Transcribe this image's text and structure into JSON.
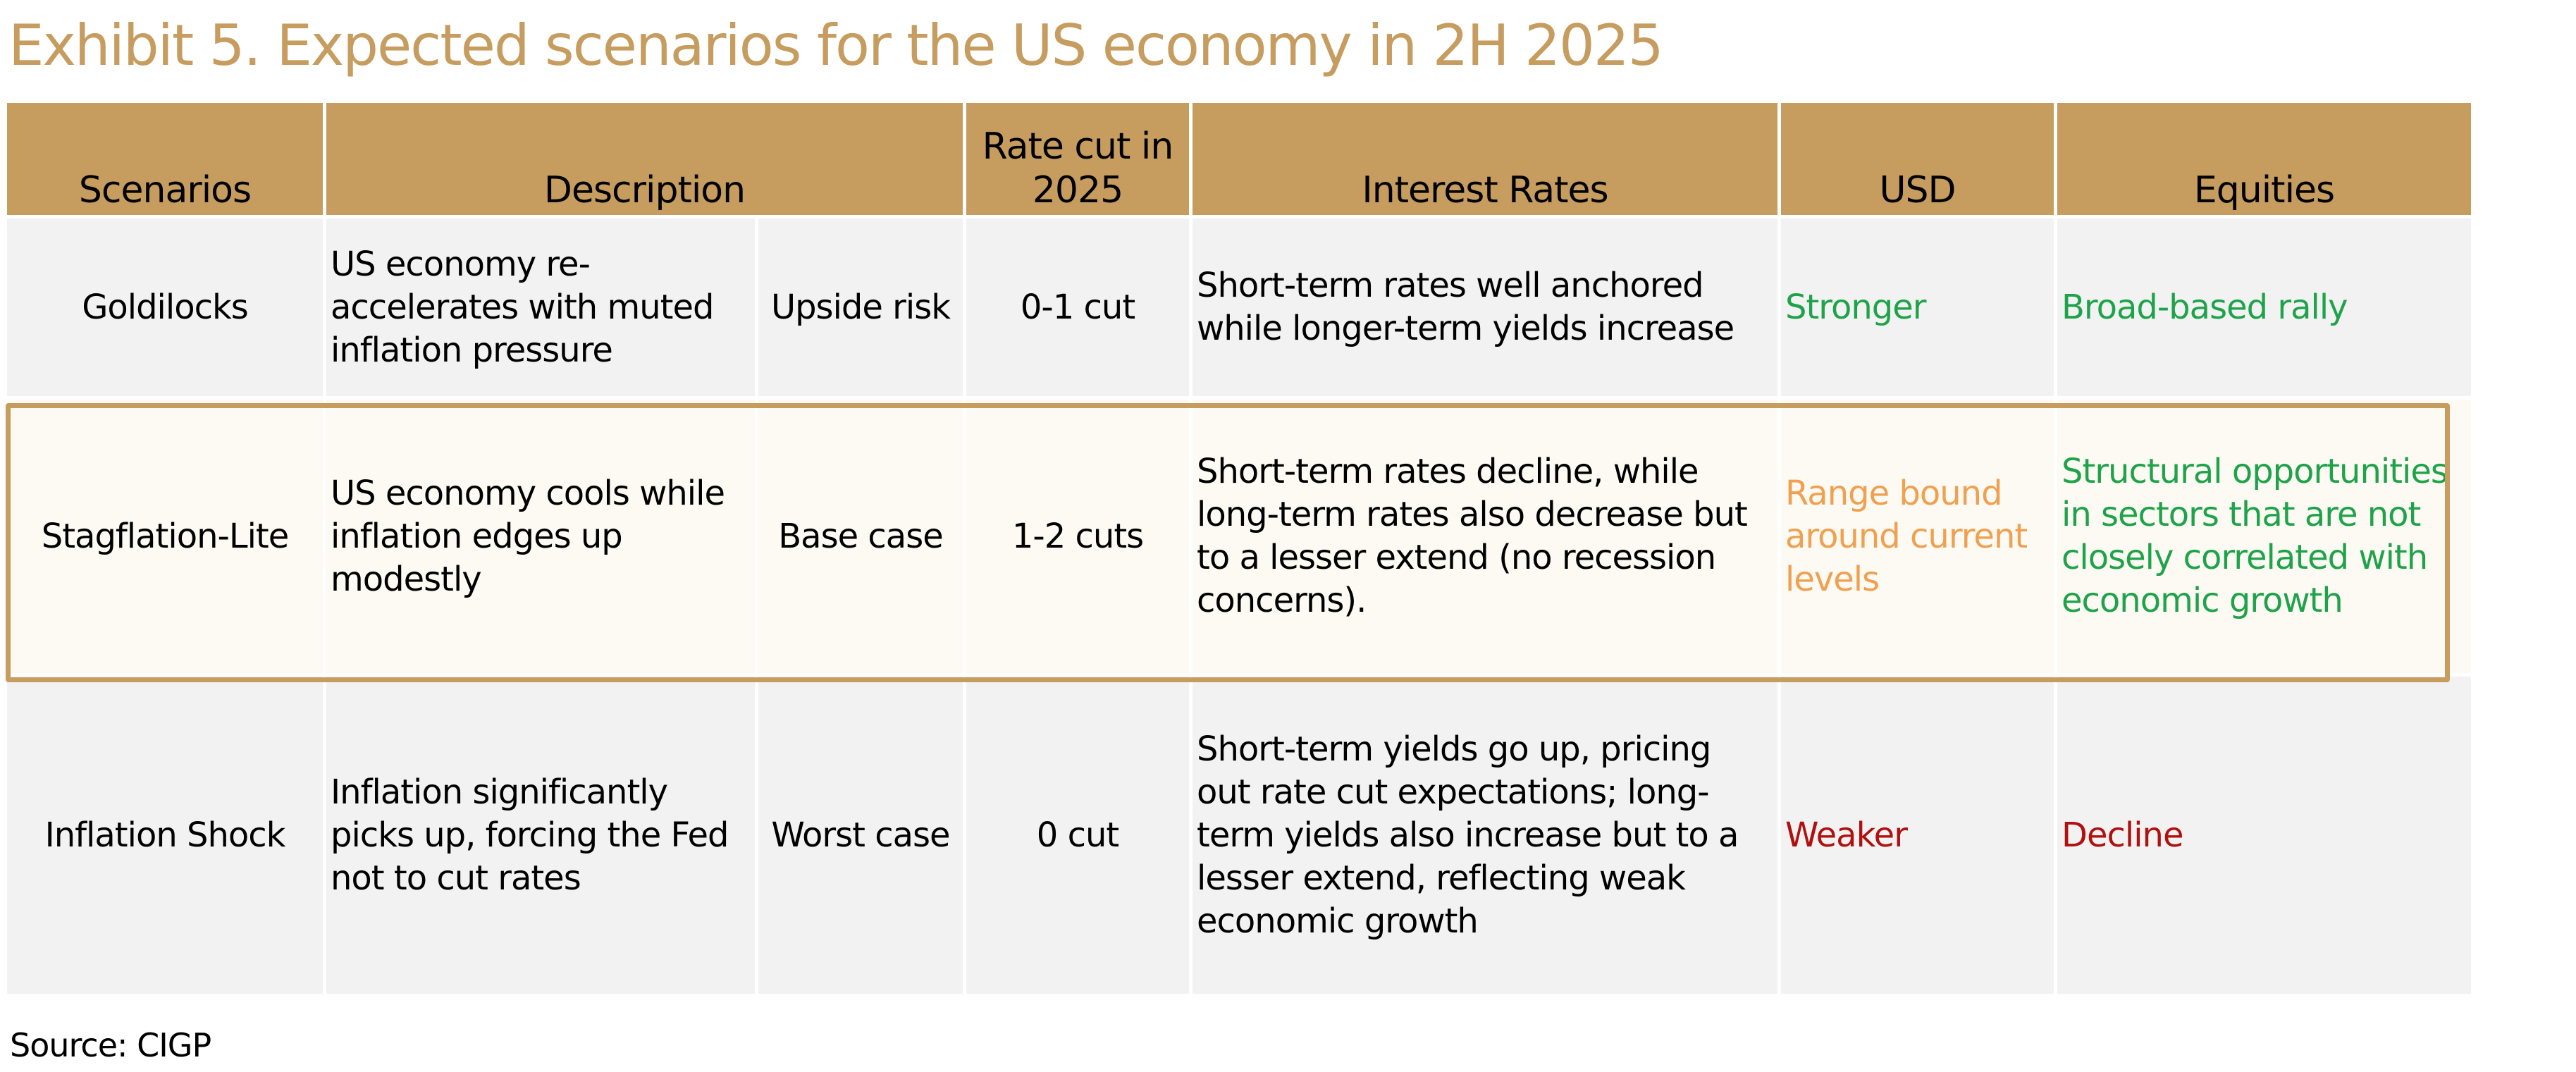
{
  "title": "Exhibit 5. Expected scenarios for the US economy in 2H 2025",
  "headers": {
    "scenarios": "Scenarios",
    "description": "Description",
    "rate_cut": "Rate cut in 2025",
    "interest_rates": "Interest Rates",
    "usd": "USD",
    "equities": "Equities"
  },
  "rows": [
    {
      "scenario": "Goldilocks",
      "description": "US economy re-accelerates with muted inflation pressure",
      "case": "Upside risk",
      "rate_cut": "0-1 cut",
      "interest_rates": "Short-term rates well anchored while longer-term yields increase",
      "usd": "Stronger",
      "equities": "Broad-based rally"
    },
    {
      "scenario": "Stagflation-Lite",
      "description": "US economy cools while inflation edges up modestly",
      "case": "Base case",
      "rate_cut": "1-2 cuts",
      "interest_rates": "Short-term rates decline, while long-term rates also decrease but to a lesser extend (no recession concerns).",
      "usd": "Range bound around current levels",
      "equities": "Structural opportunities in sectors that are not closely correlated with economic growth"
    },
    {
      "scenario": "Inflation Shock",
      "description": "Inflation significantly picks up, forcing the Fed not to cut rates",
      "case": "Worst case",
      "rate_cut": "0 cut",
      "interest_rates": "Short-term yields go up, pricing out rate cut expectations; long-term yields also increase but to a lesser extend, reflecting weak economic growth",
      "usd": "Weaker",
      "equities": "Decline"
    }
  ],
  "source": "Source: CIGP",
  "colors": {
    "header_gold": "#C69C5F",
    "positive_green": "#1FA34A",
    "neutral_orange": "#F0A050",
    "negative_red": "#B01010",
    "highlight_bg": "#FCFAF2"
  }
}
